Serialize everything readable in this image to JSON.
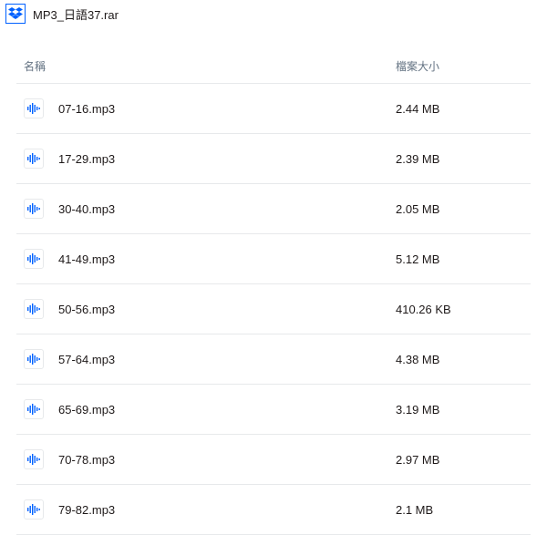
{
  "header": {
    "archive_title": "MP3_日語37.rar",
    "logo_color": "#0061ff"
  },
  "table": {
    "header_name": "名稱",
    "header_size": "檔案大小",
    "audio_icon_color": "#0061ff",
    "border_color": "#e7e9eb",
    "rows": [
      {
        "name": "07-16.mp3",
        "size": "2.44 MB"
      },
      {
        "name": "17-29.mp3",
        "size": "2.39 MB"
      },
      {
        "name": "30-40.mp3",
        "size": "2.05 MB"
      },
      {
        "name": "41-49.mp3",
        "size": "5.12 MB"
      },
      {
        "name": "50-56.mp3",
        "size": "410.26 KB"
      },
      {
        "name": "57-64.mp3",
        "size": "4.38 MB"
      },
      {
        "name": "65-69.mp3",
        "size": "3.19 MB"
      },
      {
        "name": "70-78.mp3",
        "size": "2.97 MB"
      },
      {
        "name": "79-82.mp3",
        "size": "2.1 MB"
      }
    ]
  }
}
